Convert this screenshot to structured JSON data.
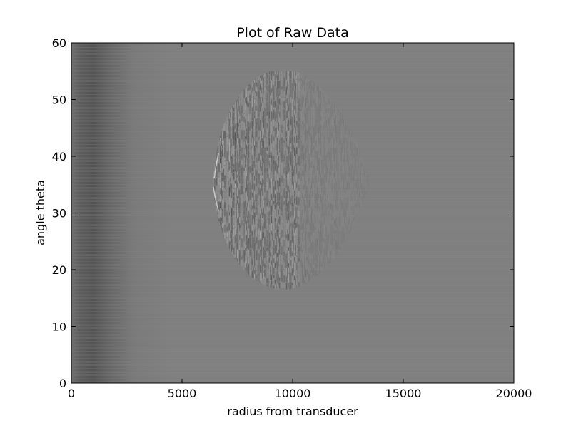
{
  "chart_data": {
    "type": "heatmap",
    "title": "Plot of Raw Data",
    "xlabel": "radius from transducer",
    "ylabel": "angle theta",
    "xlim": [
      0,
      20000
    ],
    "ylim": [
      0,
      60
    ],
    "xticks": [
      0,
      5000,
      10000,
      15000,
      20000
    ],
    "yticks": [
      0,
      10,
      20,
      30,
      40,
      50,
      60
    ],
    "xtick_labels": [
      "0",
      "5000",
      "10000",
      "15000",
      "20000"
    ],
    "ytick_labels": [
      "0",
      "10",
      "20",
      "30",
      "40",
      "50",
      "60"
    ],
    "colormap": "gray",
    "background_color": "#808080",
    "dark_band": {
      "x_start": 300,
      "x_peak": 1200,
      "x_end": 3000,
      "color": "#555555"
    },
    "echo_region": {
      "x_start": 6400,
      "x_end": 13500,
      "y_min": 17,
      "y_max": 55,
      "y_center": 35.5,
      "peak_x": 9300
    },
    "grid": false,
    "legend": "none"
  }
}
